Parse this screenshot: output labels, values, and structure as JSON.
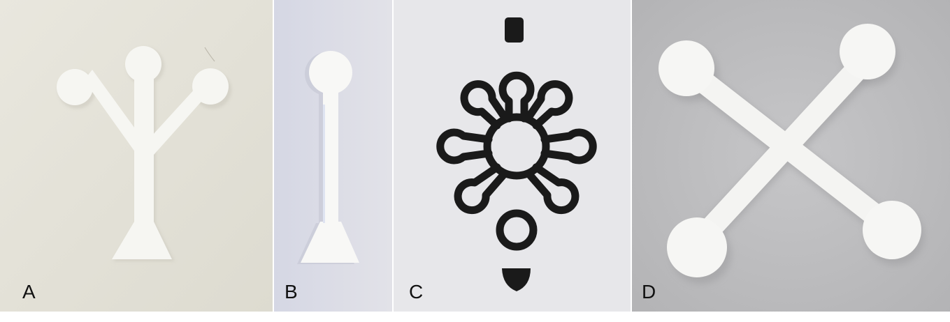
{
  "figure": {
    "panels": [
      {
        "label": "A",
        "background": "#e4e2d9",
        "shape": "paper-device-three-branch-fork"
      },
      {
        "label": "B",
        "background": "#dcdde6",
        "shape": "paper-device-single-channel-strip"
      },
      {
        "label": "C",
        "background": "#e6e6ea",
        "shape": "printed-wax-pattern-radial-channels",
        "ink": "#1a1a1a"
      },
      {
        "label": "D",
        "background": "#bdbdbf",
        "shape": "paper-device-cross-four-zones"
      }
    ],
    "paper_color": "#f6f6f2"
  }
}
